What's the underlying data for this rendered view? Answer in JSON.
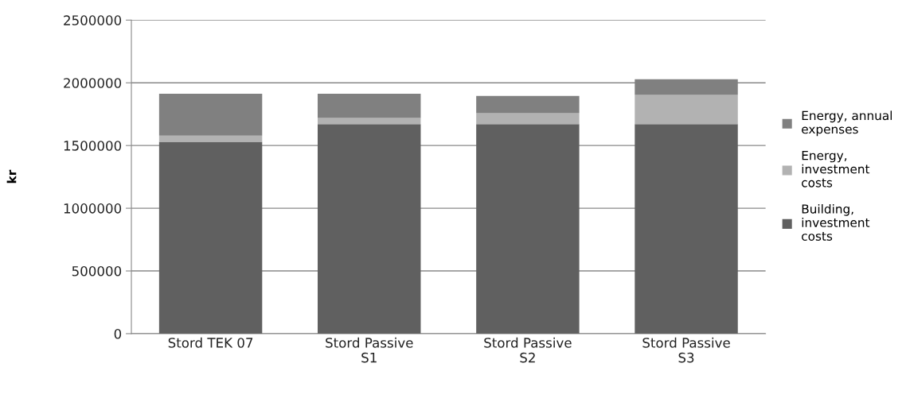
{
  "chart_data": {
    "type": "bar",
    "stacked": true,
    "ylabel": "kr",
    "categories": [
      "Stord TEK 07",
      "Stord Passive\nS1",
      "Stord Passive\nS2",
      "Stord Passive\nS3"
    ],
    "series": [
      {
        "name": "Building,\ninvestment\ncosts",
        "color": "#606060",
        "values": [
          1530000,
          1670000,
          1670000,
          1670000
        ]
      },
      {
        "name": "Energy,\ninvestment\ncosts",
        "color": "#b2b2b2",
        "values": [
          48000,
          50000,
          87000,
          234000
        ]
      },
      {
        "name": "Energy, annual\nexpenses",
        "color": "#808080",
        "values": [
          335000,
          193000,
          139000,
          125000
        ]
      }
    ],
    "ylim": [
      0,
      2500000
    ],
    "yticks": [
      0,
      500000,
      1000000,
      1500000,
      2000000,
      2500000
    ],
    "grid": "y",
    "legend": "right"
  }
}
